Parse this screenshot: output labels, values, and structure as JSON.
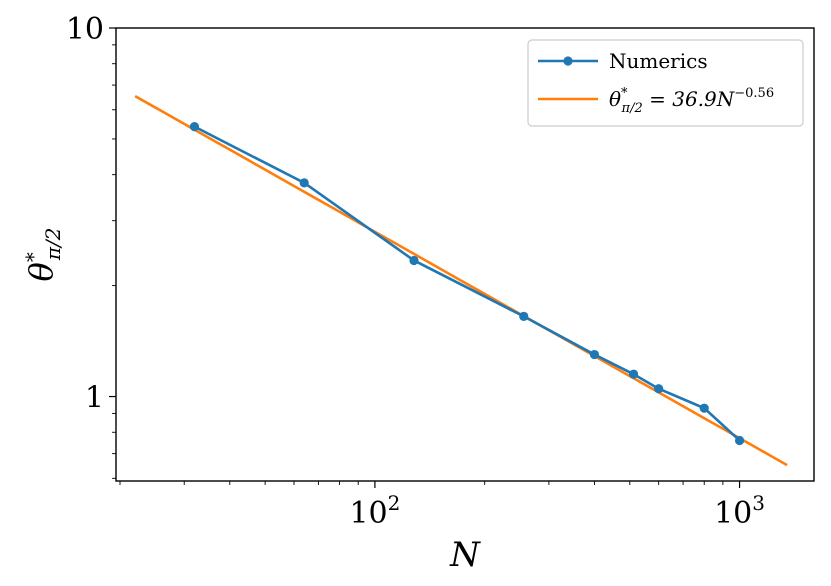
{
  "chart_data": {
    "type": "line",
    "xscale": "log",
    "yscale": "log",
    "xlabel": "N",
    "ylabel": "θ*π/2",
    "xlim": [
      19.5,
      1600
    ],
    "ylim": [
      0.59,
      10
    ],
    "x_ticks": [
      {
        "value": 100,
        "base": "10",
        "exp": "2"
      },
      {
        "value": 1000,
        "base": "10",
        "exp": "3"
      }
    ],
    "y_ticks": [
      {
        "value": 1,
        "label": "1"
      },
      {
        "value": 10,
        "label": "10"
      }
    ],
    "grid": false,
    "legend_position": "top-right",
    "series": [
      {
        "name": "Numerics",
        "kind": "line-markers",
        "color": "#1f77b4",
        "x": [
          32,
          64,
          128,
          256,
          400,
          512,
          600,
          800,
          1000
        ],
        "y": [
          5.4,
          3.8,
          2.34,
          1.65,
          1.3,
          1.15,
          1.05,
          0.93,
          0.76
        ]
      },
      {
        "name": "θ*π/2 = 36.9N^-0.56",
        "kind": "line",
        "color": "#ff7f0e",
        "coefficient": 36.9,
        "exponent": -0.56,
        "x_range": [
          22,
          1350
        ]
      }
    ],
    "legend": {
      "numerics_label": "Numerics",
      "fit_label_lhs": "θ",
      "fit_label_sup": "*",
      "fit_label_sub": "π/2",
      "fit_label_rhs": " = 36.9N",
      "fit_label_exp": "−0.56"
    }
  }
}
